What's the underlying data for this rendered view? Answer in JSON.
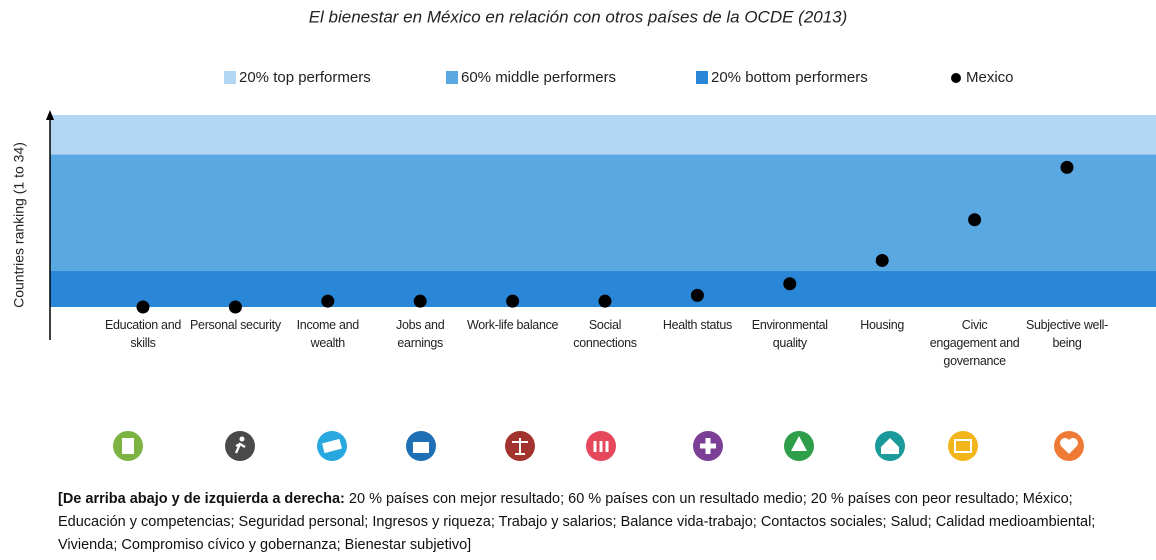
{
  "chart_data": {
    "type": "dot",
    "title": "El bienestar en México en relación con otros países de la OCDE (2013)",
    "ylabel": "Countries ranking (1 to 34)",
    "ylim": [
      34,
      1
    ],
    "bands": [
      {
        "name": "20% top performers",
        "color": "#b3d6f2",
        "range": [
          1,
          7.8
        ]
      },
      {
        "name": "60% middle performers",
        "color": "#5aa8e2",
        "range": [
          7.8,
          27.8
        ]
      },
      {
        "name": "20% bottom performers",
        "color": "#2a86d6",
        "range": [
          27.8,
          34
        ]
      }
    ],
    "categories": [
      "Education and skills",
      "Personal security",
      "Income and wealth",
      "Jobs and earnings",
      "Work-life balance",
      "Social connections",
      "Health status",
      "Environmental quality",
      "Housing",
      "Civic engagement and governance",
      "Subjective well-being"
    ],
    "series": [
      {
        "name": "Mexico",
        "color": "#000000",
        "values": [
          34,
          34,
          33,
          33,
          33,
          33,
          32,
          30,
          26,
          19,
          10
        ]
      }
    ]
  },
  "footnote": {
    "bold": "[De arriba abajo y de izquierda a derecha:",
    "text": " 20 % países con mejor resultado; 60 % países con un resultado medio; 20 % países con peor resultado; México; Educación y competencias;  Seguridad personal; Ingresos y riqueza; Trabajo y salarios; Balance vida-trabajo; Contactos sociales; Salud; Calidad medioambiental; Vivienda; Compromiso cívico y gobernanza; Bienestar subjetivo]"
  }
}
